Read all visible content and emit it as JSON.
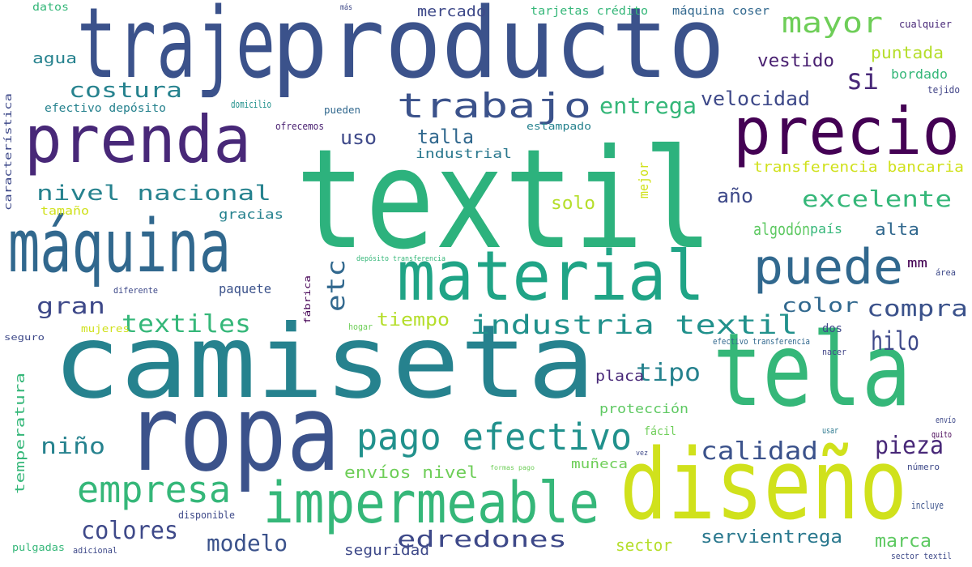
{
  "words": [
    {
      "text": "traje",
      "color": "#3b528b"
    },
    {
      "text": "producto",
      "color": "#3b528b"
    },
    {
      "text": "textil",
      "color": "#2db27d"
    },
    {
      "text": "camiseta",
      "color": "#26828e"
    },
    {
      "text": "ropa",
      "color": "#3b528b"
    },
    {
      "text": "tela",
      "color": "#35b779"
    },
    {
      "text": "diseño",
      "color": "#d0e11c"
    },
    {
      "text": "máquina",
      "color": "#31688e"
    },
    {
      "text": "prenda",
      "color": "#482878"
    },
    {
      "text": "precio",
      "color": "#440154"
    },
    {
      "text": "material",
      "color": "#20a486"
    },
    {
      "text": "puede",
      "color": "#31688e"
    },
    {
      "text": "impermeable",
      "color": "#35b779"
    },
    {
      "text": "pago efectivo",
      "color": "#21918c"
    },
    {
      "text": "empresa",
      "color": "#35b779"
    },
    {
      "text": "mayor",
      "color": "#6ece58"
    },
    {
      "text": "trabajo",
      "color": "#3b528b"
    },
    {
      "text": "costura",
      "color": "#26828e"
    },
    {
      "text": "entrega",
      "color": "#35b779"
    },
    {
      "text": "si",
      "color": "#482878"
    },
    {
      "text": "velocidad",
      "color": "#3e4989"
    },
    {
      "text": "vestido",
      "color": "#481f70"
    },
    {
      "text": "puntada",
      "color": "#b5de2b"
    },
    {
      "text": "bordado",
      "color": "#35b779"
    },
    {
      "text": "tejido",
      "color": "#414487"
    },
    {
      "text": "cualquier",
      "color": "#482878"
    },
    {
      "text": "agua",
      "color": "#26828e"
    },
    {
      "text": "uso",
      "color": "#3e4989"
    },
    {
      "text": "talla",
      "color": "#31688e"
    },
    {
      "text": "industrial",
      "color": "#2a788e"
    },
    {
      "text": "nivel nacional",
      "color": "#26828e"
    },
    {
      "text": "excelente",
      "color": "#35b779"
    },
    {
      "text": "año",
      "color": "#3e4989"
    },
    {
      "text": "alta",
      "color": "#31688e"
    },
    {
      "text": "algodón",
      "color": "#5ec962"
    },
    {
      "text": "país",
      "color": "#35b779"
    },
    {
      "text": "solo",
      "color": "#b5de2b"
    },
    {
      "text": "transferencia bancaria",
      "color": "#d0e11c"
    },
    {
      "text": "mejor",
      "color": "#d0e11c"
    },
    {
      "text": "etc",
      "color": "#31688e"
    },
    {
      "text": "gran",
      "color": "#3e4989"
    },
    {
      "text": "textiles",
      "color": "#35b779"
    },
    {
      "text": "tiempo",
      "color": "#b5de2b"
    },
    {
      "text": "industria textil",
      "color": "#21918c"
    },
    {
      "text": "color",
      "color": "#31688e"
    },
    {
      "text": "compra",
      "color": "#3b528b"
    },
    {
      "text": "hilo",
      "color": "#3e4989"
    },
    {
      "text": "dos",
      "color": "#3e4989"
    },
    {
      "text": "mm",
      "color": "#440154"
    },
    {
      "text": "tipo",
      "color": "#26828e"
    },
    {
      "text": "calidad",
      "color": "#3b528b"
    },
    {
      "text": "pieza",
      "color": "#482878"
    },
    {
      "text": "niño",
      "color": "#26828e"
    },
    {
      "text": "placa",
      "color": "#482878"
    },
    {
      "text": "protección",
      "color": "#5ec962"
    },
    {
      "text": "fácil",
      "color": "#6ece58"
    },
    {
      "text": "muñeca",
      "color": "#6ece58"
    },
    {
      "text": "envíos nivel",
      "color": "#6ece58"
    },
    {
      "text": "colores",
      "color": "#3e4989"
    },
    {
      "text": "modelo",
      "color": "#3b528b"
    },
    {
      "text": "edredones",
      "color": "#3e4989"
    },
    {
      "text": "seguridad",
      "color": "#3e4989"
    },
    {
      "text": "sector",
      "color": "#b5de2b"
    },
    {
      "text": "servientrega",
      "color": "#2a788e"
    },
    {
      "text": "marca",
      "color": "#5ec962"
    },
    {
      "text": "sector textil",
      "color": "#3e4989"
    },
    {
      "text": "incluye",
      "color": "#3b528b"
    },
    {
      "text": "número",
      "color": "#3e4989"
    },
    {
      "text": "quito",
      "color": "#440154"
    },
    {
      "text": "envío",
      "color": "#3e4989"
    },
    {
      "text": "nacer",
      "color": "#414487"
    },
    {
      "text": "área",
      "color": "#3e4989"
    },
    {
      "text": "efectivo transferencia",
      "color": "#31688e"
    },
    {
      "text": "usar",
      "color": "#2a788e"
    },
    {
      "text": "vez",
      "color": "#3e4989"
    },
    {
      "text": "datos",
      "color": "#35b779"
    },
    {
      "text": "más",
      "color": "#3e4989"
    },
    {
      "text": "mercado",
      "color": "#3e4989"
    },
    {
      "text": "tarjetas crédito",
      "color": "#35b779"
    },
    {
      "text": "máquina coser",
      "color": "#31688e"
    },
    {
      "text": "efectivo depósito",
      "color": "#26828e"
    },
    {
      "text": "domicilio",
      "color": "#21918c"
    },
    {
      "text": "pueden",
      "color": "#31688e"
    },
    {
      "text": "ofrecemos",
      "color": "#481f70"
    },
    {
      "text": "estampado",
      "color": "#26828e"
    },
    {
      "text": "característica",
      "color": "#3e4989"
    },
    {
      "text": "tamaño",
      "color": "#d0e11c"
    },
    {
      "text": "gracias",
      "color": "#26828e"
    },
    {
      "text": "depósito transferencia",
      "color": "#35b779"
    },
    {
      "text": "fábrica",
      "color": "#440154"
    },
    {
      "text": "diferente",
      "color": "#3e4989"
    },
    {
      "text": "paquete",
      "color": "#3b528b"
    },
    {
      "text": "hogar",
      "color": "#6ece58"
    },
    {
      "text": "mujeres",
      "color": "#d0e11c"
    },
    {
      "text": "seguro",
      "color": "#3e4989"
    },
    {
      "text": "temperatura",
      "color": "#35b779"
    },
    {
      "text": "formas pago",
      "color": "#6ece58"
    },
    {
      "text": "disponible",
      "color": "#3e4989"
    },
    {
      "text": "pulgadas",
      "color": "#35b779"
    },
    {
      "text": "adicional",
      "color": "#3e4989"
    }
  ]
}
